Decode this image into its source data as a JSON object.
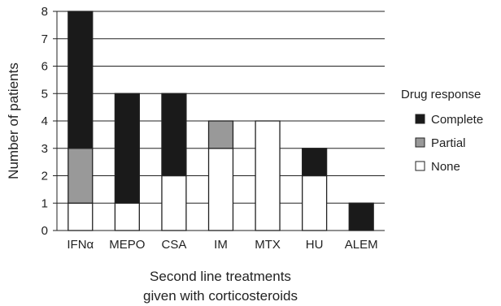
{
  "chart_data": {
    "type": "bar",
    "stacked": true,
    "categories": [
      "IFNα",
      "MEPO",
      "CSA",
      "IM",
      "MTX",
      "HU",
      "ALEM"
    ],
    "series": [
      {
        "name": "None",
        "color": "#ffffff",
        "values": [
          1,
          1,
          2,
          3,
          4,
          2,
          0
        ]
      },
      {
        "name": "Partial",
        "color": "#999999",
        "values": [
          2,
          0,
          0,
          1,
          0,
          0,
          0
        ]
      },
      {
        "name": "Complete",
        "color": "#1a1a1a",
        "values": [
          5,
          4,
          3,
          0,
          0,
          1,
          1
        ]
      }
    ],
    "ylabel": "Number of patients",
    "xlabel_lines": [
      "Second line treatments",
      "given with corticosteroids"
    ],
    "ylim": [
      0,
      8
    ],
    "yticks": [
      0,
      1,
      2,
      3,
      4,
      5,
      6,
      7,
      8
    ],
    "grid": true,
    "legend": {
      "title": "Drug response",
      "placement": "right",
      "entries": [
        {
          "label": "Complete",
          "color": "#1a1a1a"
        },
        {
          "label": "Partial",
          "color": "#999999"
        },
        {
          "label": "None",
          "color": "#ffffff"
        }
      ]
    }
  }
}
